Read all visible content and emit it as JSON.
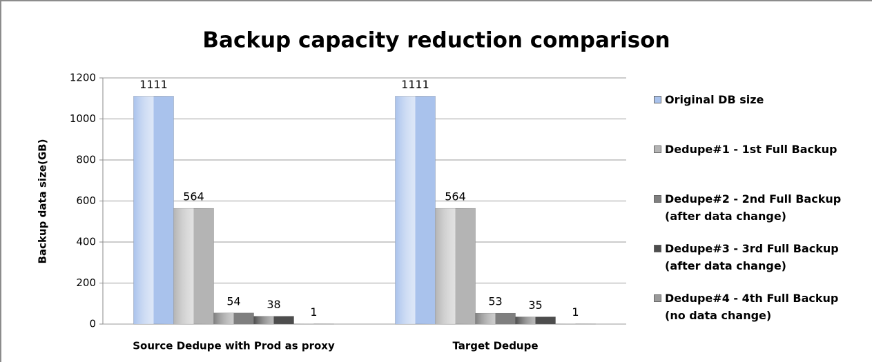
{
  "chart_data": {
    "type": "bar",
    "title": "Backup capacity reduction comparison",
    "y_label": "Backup data size(GB)",
    "categories": [
      "Source Dedupe with Prod as proxy",
      "Target Dedupe"
    ],
    "series": [
      {
        "name": "Original DB size",
        "color": "#a9c2ec",
        "values": [
          1111,
          1111
        ]
      },
      {
        "name": "Dedupe#1 - 1st Full Backup",
        "color": "#b4b4b4",
        "values": [
          564,
          564
        ]
      },
      {
        "name": "Dedupe#2 - 2nd Full Backup (after data change)",
        "color": "#7f7f7f",
        "values": [
          54,
          53
        ]
      },
      {
        "name": "Dedupe#3 - 3rd Full Backup (after data change)",
        "color": "#4d4d4d",
        "values": [
          38,
          35
        ]
      },
      {
        "name": "Dedupe#4 - 4th Full Backup (no data change)",
        "color": "#9a9a9a",
        "values": [
          1,
          1
        ]
      }
    ],
    "ylim": [
      0,
      1200
    ],
    "yticks": [
      0,
      200,
      400,
      600,
      800,
      1000,
      1200
    ],
    "grid": true
  }
}
